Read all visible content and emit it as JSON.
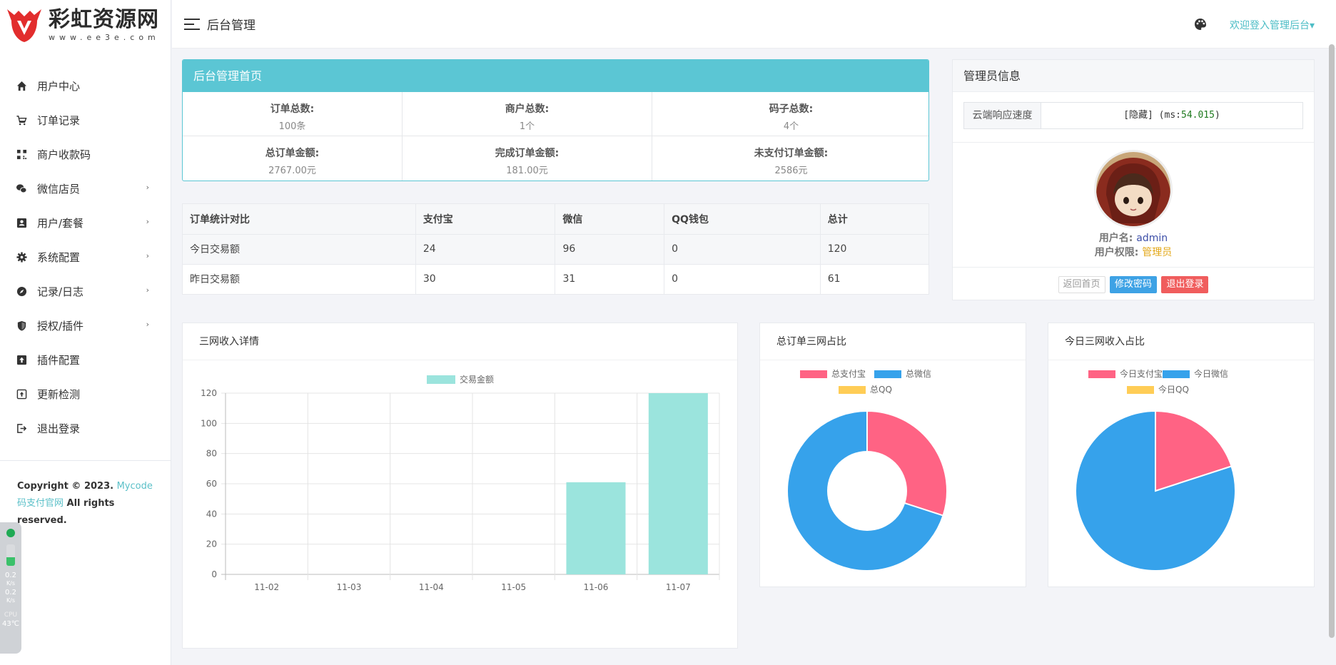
{
  "brand": {
    "title": "彩虹资源网",
    "subtitle": "www.ee3e.com",
    "colors": {
      "accent": "#5bc6d4",
      "red": "#e22d2d"
    }
  },
  "sidebar": {
    "items": [
      {
        "label": "用户中心",
        "icon": "home-icon",
        "has_children": false
      },
      {
        "label": "订单记录",
        "icon": "cart-icon",
        "has_children": false
      },
      {
        "label": "商户收款码",
        "icon": "qrcode-icon",
        "has_children": false
      },
      {
        "label": "微信店员",
        "icon": "wechat-icon",
        "has_children": true
      },
      {
        "label": "用户/套餐",
        "icon": "id-card-icon",
        "has_children": true
      },
      {
        "label": "系统配置",
        "icon": "gear-icon",
        "has_children": true
      },
      {
        "label": "记录/日志",
        "icon": "compass-icon",
        "has_children": true
      },
      {
        "label": "授权/插件",
        "icon": "shield-icon",
        "has_children": true
      },
      {
        "label": "插件配置",
        "icon": "upload-box-icon",
        "has_children": false
      },
      {
        "label": "更新检测",
        "icon": "upload-square-icon",
        "has_children": false
      },
      {
        "label": "退出登录",
        "icon": "logout-icon",
        "has_children": false
      }
    ],
    "footer": {
      "prefix": "Copyright © 2023. ",
      "link": "Mycode码支付官网",
      "suffix": " All rights reserved."
    }
  },
  "widget": {
    "up": "0.2",
    "up_unit": "K/s",
    "down": "0.2",
    "down_unit": "K/s",
    "cpu_label": "CPU",
    "cpu_temp": "43℃"
  },
  "header": {
    "title": "后台管理",
    "welcome": "欢迎登入管理后台▾",
    "palette_icon": "palette-icon"
  },
  "home": {
    "title": "后台管理首页",
    "stats": [
      {
        "label": "订单总数:",
        "value": "100条"
      },
      {
        "label": "商户总数:",
        "value": "1个"
      },
      {
        "label": "码子总数:",
        "value": "4个"
      },
      {
        "label": "总订单金额:",
        "value": "2767.00元"
      },
      {
        "label": "完成订单金额:",
        "value": "181.00元"
      },
      {
        "label": "未支付订单金额:",
        "value": "2586元"
      }
    ]
  },
  "compare": {
    "headers": [
      "订单统计对比",
      "支付宝",
      "微信",
      "QQ钱包",
      "总计"
    ],
    "rows": [
      [
        "今日交易额",
        "24",
        "96",
        "0",
        "120"
      ],
      [
        "昨日交易额",
        "30",
        "31",
        "0",
        "61"
      ]
    ]
  },
  "admin": {
    "title": "管理员信息",
    "speed_label": "云端响应速度",
    "speed_prefix": "[隐藏] (ms:",
    "speed_value": "54.015",
    "speed_suffix": ")",
    "username_label": "用户名:",
    "username": "admin",
    "role_label": "用户权限:",
    "role": "管理员",
    "btn_home": "返回首页",
    "btn_pwd": "修改密码",
    "btn_logout": "退出登录"
  },
  "charts": {
    "income": {
      "title": "三网收入详情"
    },
    "total": {
      "title": "总订单三网占比"
    },
    "today": {
      "title": "今日三网收入占比"
    }
  },
  "chart_data": [
    {
      "type": "bar",
      "categories": [
        "11-02",
        "11-03",
        "11-04",
        "11-05",
        "11-06",
        "11-07"
      ],
      "series": [
        {
          "name": "交易金额",
          "values": [
            0,
            0,
            0,
            0,
            61,
            120
          ],
          "color": "#9be4dd"
        }
      ],
      "ylim": [
        0,
        120
      ],
      "yticks": [
        0,
        20,
        40,
        60,
        80,
        100,
        120
      ],
      "grid": true,
      "legend": "top-center"
    },
    {
      "type": "pie",
      "variant": "doughnut",
      "labels": [
        "总支付宝",
        "总微信",
        "总QQ"
      ],
      "values": [
        30,
        70,
        0
      ],
      "colors": [
        "#ff6384",
        "#36a2eb",
        "#ffcd56"
      ],
      "legend": "top"
    },
    {
      "type": "pie",
      "labels": [
        "今日支付宝",
        "今日微信",
        "今日QQ"
      ],
      "values": [
        24,
        96,
        0
      ],
      "colors": [
        "#ff6384",
        "#36a2eb",
        "#ffcd56"
      ],
      "legend": "top"
    }
  ]
}
